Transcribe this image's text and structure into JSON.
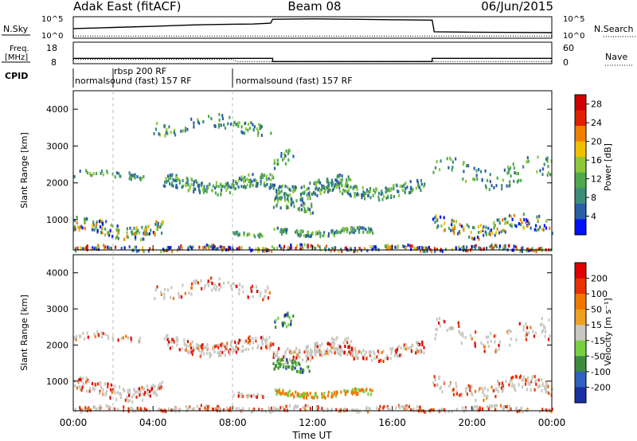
{
  "header": {
    "station": "Adak East (fitACF)",
    "beam": "Beam 08",
    "date": "06/Jun/2015"
  },
  "chart_data": [
    {
      "type": "line",
      "name": "noise-panel",
      "left_label": "N.Sky",
      "right_label": "N.Search",
      "left_ticks": [
        "10^5",
        "10^0"
      ],
      "right_ticks": [
        "10^5",
        "10^0"
      ],
      "series": [
        {
          "name": "N.Sky",
          "style": "solid",
          "x": [
            0,
            2,
            4,
            6,
            8,
            9,
            9.9,
            10,
            12,
            14,
            16,
            18,
            18.1,
            20,
            22,
            24
          ],
          "y": [
            0.45,
            0.5,
            0.55,
            0.62,
            0.65,
            0.66,
            0.7,
            0.88,
            0.9,
            0.88,
            0.86,
            0.84,
            0.3,
            0.28,
            0.27,
            0.26
          ]
        },
        {
          "name": "N.Search",
          "style": "dotted",
          "x": [
            0,
            24
          ],
          "y": [
            0.1,
            0.1
          ]
        }
      ]
    },
    {
      "type": "line",
      "name": "frequency-panel",
      "left_label": "Freq.",
      "left_unit": "[MHz]",
      "left_ticks": [
        18,
        8
      ],
      "right_label": "Nave",
      "right_ticks": [
        60,
        0
      ],
      "series": [
        {
          "name": "Freq",
          "style": "solid",
          "x": [
            0,
            10,
            10,
            18,
            18,
            24
          ],
          "y": [
            10.5,
            10.5,
            9.0,
            9.0,
            10.5,
            10.5
          ]
        },
        {
          "name": "Nave",
          "style": "dotted",
          "x": [
            0,
            8,
            8.2,
            24
          ],
          "y": [
            10,
            10,
            9,
            9
          ]
        }
      ]
    },
    {
      "type": "table",
      "name": "cpid-panel",
      "label": "CPID",
      "segments": [
        {
          "start": 0,
          "text": "normalsound (fast) 157 RF"
        },
        {
          "start": 2,
          "text": "rbsp 200 RF"
        },
        {
          "start": 8,
          "text": "normalsound (fast) 157 RF"
        }
      ]
    },
    {
      "type": "heatmap",
      "name": "power-panel",
      "ylabel": "Slant Range [km]",
      "ylim": [
        180,
        4500
      ],
      "yticks": [
        1000,
        2000,
        3000,
        4000
      ],
      "xlim": [
        0,
        24
      ],
      "colorbar": {
        "label": "Power [dB]",
        "ticks": [
          4,
          8,
          12,
          16,
          20,
          24,
          28
        ],
        "range": [
          0,
          30
        ],
        "colors": [
          "#0010ff",
          "#2a5fa8",
          "#3c8c7a",
          "#4ea84c",
          "#8cc83a",
          "#f0c000",
          "#f08000",
          "#e02000",
          "#d00000"
        ]
      }
    },
    {
      "type": "heatmap",
      "name": "velocity-panel",
      "ylabel": "Slant Range [km]",
      "ylim": [
        180,
        4500
      ],
      "yticks": [
        1000,
        2000,
        3000,
        4000
      ],
      "xlim": [
        0,
        24
      ],
      "colorbar": {
        "label": "Velocity [m s⁻¹]",
        "ticks": [
          "200",
          "100",
          "50",
          "15",
          "-15",
          "-50",
          "-100",
          "-200"
        ],
        "colors": [
          "#1830a0",
          "#3060c0",
          "#3c8c3c",
          "#78d040",
          "#c8c8c0",
          "#f0a020",
          "#f07800",
          "#e83000",
          "#e00000"
        ]
      },
      "xticks": [
        "00:00",
        "04:00",
        "08:00",
        "12:00",
        "16:00",
        "20:00",
        "00:00"
      ],
      "xlabel": "Time UT"
    }
  ],
  "scatter_bands": [
    {
      "t0": 0.0,
      "t1": 3.5,
      "r": 2250,
      "w": 120,
      "dens": 0.25
    },
    {
      "t0": 0.0,
      "t1": 4.5,
      "r": 800,
      "w": 240,
      "dens": 0.7
    },
    {
      "t0": 4.5,
      "t1": 10.0,
      "r": 2000,
      "w": 220,
      "dens": 0.8
    },
    {
      "t0": 9.8,
      "t1": 14.0,
      "r": 1900,
      "w": 260,
      "dens": 0.75
    },
    {
      "t0": 12.0,
      "t1": 17.6,
      "r": 1850,
      "w": 200,
      "dens": 0.65
    },
    {
      "t0": 4.0,
      "t1": 10.0,
      "r": 3600,
      "w": 220,
      "dens": 0.35
    },
    {
      "t0": 10.0,
      "t1": 11.0,
      "r": 2600,
      "w": 250,
      "dens": 0.5
    },
    {
      "t0": 10.0,
      "t1": 12.0,
      "r": 1400,
      "w": 180,
      "dens": 0.6
    },
    {
      "t0": 10.0,
      "t1": 15.0,
      "r": 700,
      "w": 100,
      "dens": 0.55
    },
    {
      "t0": 18.0,
      "t1": 24.0,
      "r": 2300,
      "w": 350,
      "dens": 0.35
    },
    {
      "t0": 18.0,
      "t1": 24.0,
      "r": 850,
      "w": 260,
      "dens": 0.55
    },
    {
      "t0": 8.0,
      "t1": 9.5,
      "r": 650,
      "w": 60,
      "dens": 0.4
    },
    {
      "t0": 0.0,
      "t1": 24.0,
      "r": 260,
      "w": 80,
      "dens": 0.35
    }
  ]
}
